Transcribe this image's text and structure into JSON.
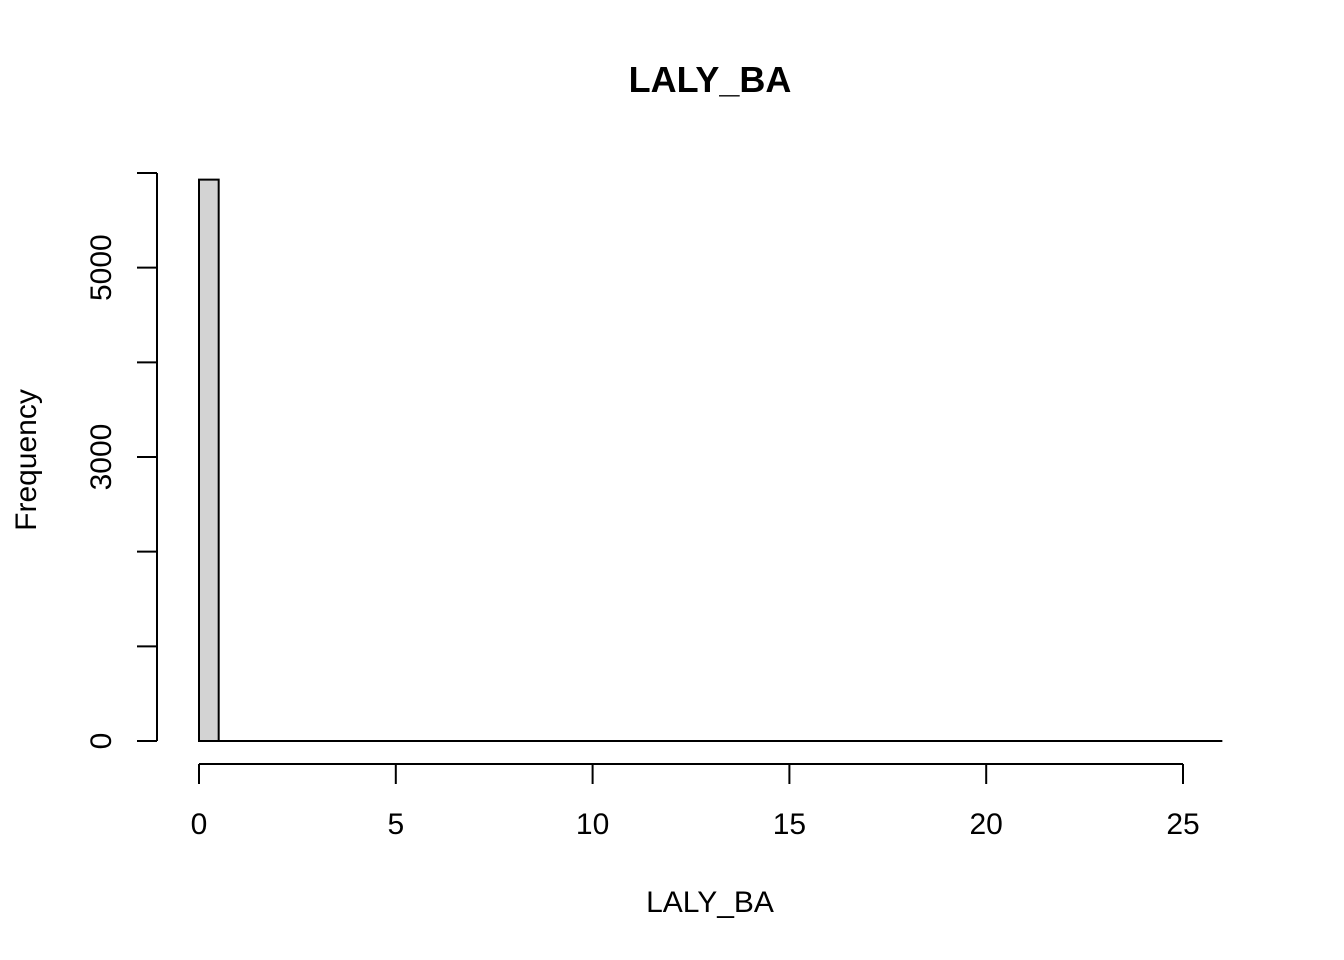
{
  "chart_data": {
    "type": "bar",
    "title": "LALY_BA",
    "xlabel": "LALY_BA",
    "ylabel": "Frequency",
    "bin_width": 0.5,
    "bins": [
      {
        "start": 0.0,
        "end": 0.5,
        "count": 5930
      }
    ],
    "x_range": [
      0,
      26
    ],
    "x_ticks": [
      0,
      5,
      10,
      15,
      20,
      25
    ],
    "y_range": [
      0,
      6000
    ],
    "y_ticks": [
      0,
      1000,
      2000,
      3000,
      4000,
      5000,
      6000
    ],
    "y_tick_labels": [
      "0",
      "",
      "",
      "3000",
      "",
      "5000",
      ""
    ],
    "bar_fill": "#d3d3d3",
    "bar_stroke": "#000000",
    "grid": false
  }
}
